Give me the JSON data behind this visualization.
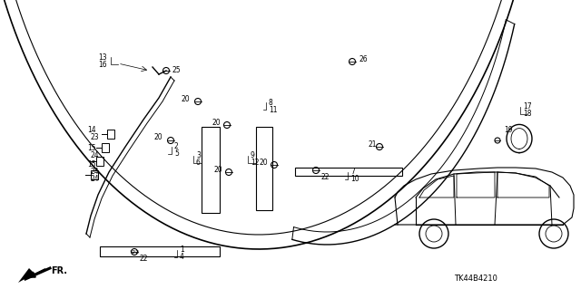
{
  "bg_color": "#ffffff",
  "diagram_code": "TK44B4210",
  "fig_width": 6.4,
  "fig_height": 3.19,
  "dpi": 100
}
